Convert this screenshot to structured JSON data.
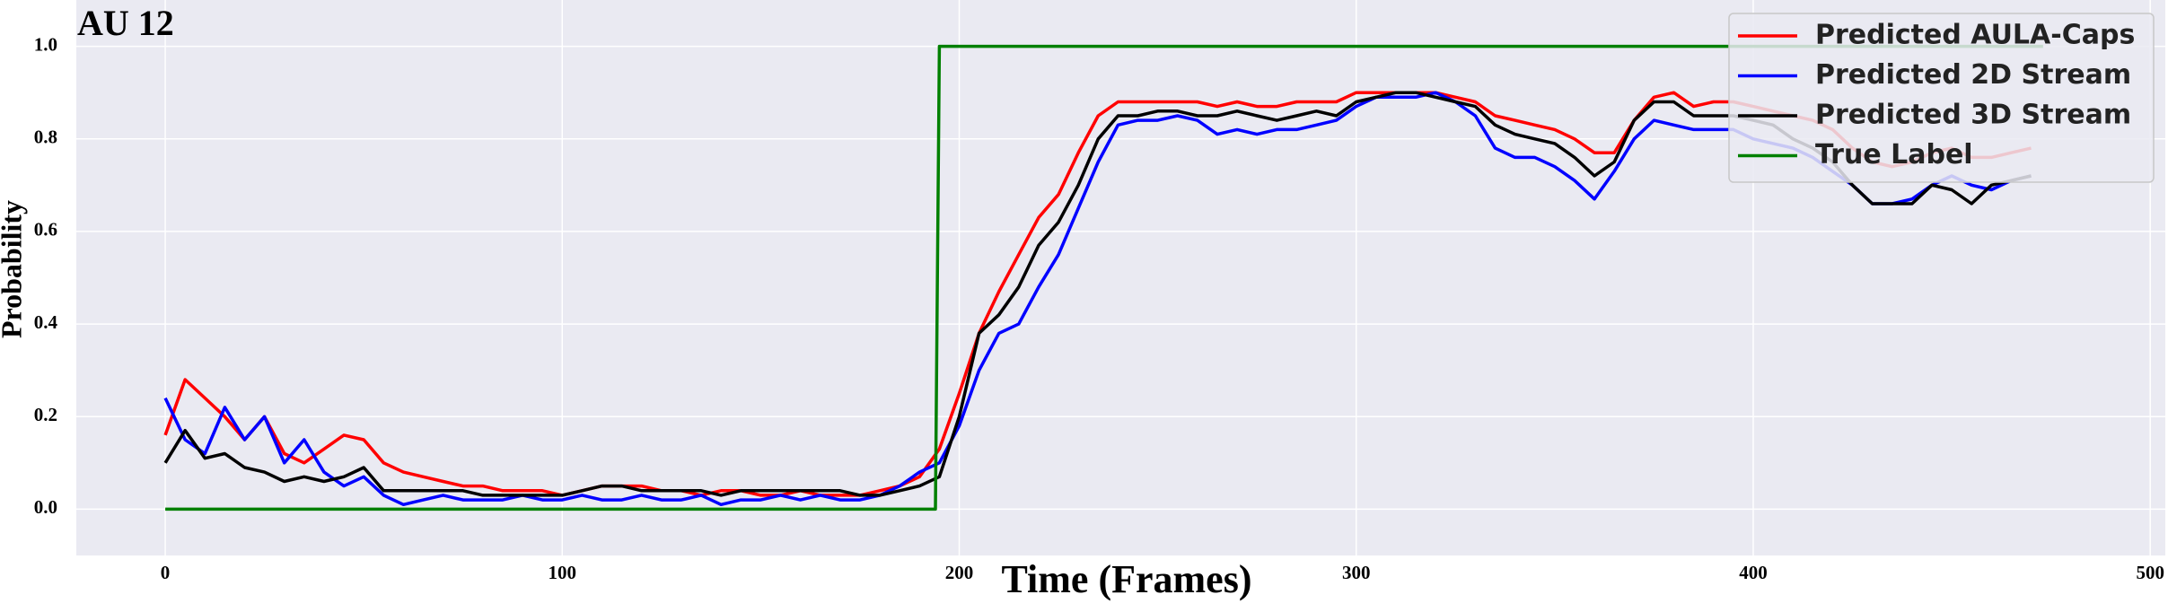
{
  "chart_data": {
    "type": "line",
    "title": "AU 12",
    "xlabel": "Time (Frames)",
    "ylabel": "Probability",
    "x": [
      0,
      5,
      10,
      15,
      20,
      25,
      30,
      35,
      40,
      45,
      50,
      55,
      60,
      65,
      70,
      75,
      80,
      85,
      90,
      95,
      100,
      105,
      110,
      115,
      120,
      125,
      130,
      135,
      140,
      145,
      150,
      155,
      160,
      165,
      170,
      175,
      180,
      185,
      190,
      195,
      200,
      205,
      210,
      215,
      220,
      225,
      230,
      235,
      240,
      245,
      250,
      255,
      260,
      265,
      270,
      275,
      280,
      285,
      290,
      295,
      300,
      305,
      310,
      315,
      320,
      325,
      330,
      335,
      340,
      345,
      350,
      355,
      360,
      365,
      370,
      375,
      380,
      385,
      390,
      395,
      400,
      405,
      410,
      415,
      420,
      425,
      430,
      435,
      440,
      445,
      450,
      455,
      460,
      465,
      470
    ],
    "series": [
      {
        "name": "Predicted AULA-Caps",
        "color": "#ff0000",
        "values": [
          0.16,
          0.28,
          0.24,
          0.2,
          0.15,
          0.2,
          0.12,
          0.1,
          0.13,
          0.16,
          0.15,
          0.1,
          0.08,
          0.07,
          0.06,
          0.05,
          0.05,
          0.04,
          0.04,
          0.04,
          0.03,
          0.04,
          0.05,
          0.05,
          0.05,
          0.04,
          0.04,
          0.03,
          0.04,
          0.04,
          0.03,
          0.03,
          0.04,
          0.03,
          0.03,
          0.03,
          0.04,
          0.05,
          0.07,
          0.13,
          0.25,
          0.38,
          0.47,
          0.55,
          0.63,
          0.68,
          0.77,
          0.85,
          0.88,
          0.88,
          0.88,
          0.88,
          0.88,
          0.87,
          0.88,
          0.87,
          0.87,
          0.88,
          0.88,
          0.88,
          0.9,
          0.9,
          0.9,
          0.9,
          0.9,
          0.89,
          0.88,
          0.85,
          0.84,
          0.83,
          0.82,
          0.8,
          0.77,
          0.77,
          0.84,
          0.89,
          0.9,
          0.87,
          0.88,
          0.88,
          0.87,
          0.86,
          0.85,
          0.84,
          0.82,
          0.78,
          0.75,
          0.74,
          0.75,
          0.77,
          0.78,
          0.76,
          0.76,
          0.77,
          0.78
        ]
      },
      {
        "name": "Predicted 2D Stream",
        "color": "#0000ff",
        "values": [
          0.24,
          0.15,
          0.12,
          0.22,
          0.15,
          0.2,
          0.1,
          0.15,
          0.08,
          0.05,
          0.07,
          0.03,
          0.01,
          0.02,
          0.03,
          0.02,
          0.02,
          0.02,
          0.03,
          0.02,
          0.02,
          0.03,
          0.02,
          0.02,
          0.03,
          0.02,
          0.02,
          0.03,
          0.01,
          0.02,
          0.02,
          0.03,
          0.02,
          0.03,
          0.02,
          0.02,
          0.03,
          0.05,
          0.08,
          0.1,
          0.18,
          0.3,
          0.38,
          0.4,
          0.48,
          0.55,
          0.65,
          0.75,
          0.83,
          0.84,
          0.84,
          0.85,
          0.84,
          0.81,
          0.82,
          0.81,
          0.82,
          0.82,
          0.83,
          0.84,
          0.87,
          0.89,
          0.89,
          0.89,
          0.9,
          0.88,
          0.85,
          0.78,
          0.76,
          0.76,
          0.74,
          0.71,
          0.67,
          0.73,
          0.8,
          0.84,
          0.83,
          0.82,
          0.82,
          0.82,
          0.8,
          0.79,
          0.78,
          0.76,
          0.73,
          0.7,
          0.66,
          0.66,
          0.67,
          0.7,
          0.72,
          0.7,
          0.69,
          0.71,
          0.72
        ]
      },
      {
        "name": "Predicted 3D Stream",
        "color": "#000000",
        "values": [
          0.1,
          0.17,
          0.11,
          0.12,
          0.09,
          0.08,
          0.06,
          0.07,
          0.06,
          0.07,
          0.09,
          0.04,
          0.04,
          0.04,
          0.04,
          0.04,
          0.03,
          0.03,
          0.03,
          0.03,
          0.03,
          0.04,
          0.05,
          0.05,
          0.04,
          0.04,
          0.04,
          0.04,
          0.03,
          0.04,
          0.04,
          0.04,
          0.04,
          0.04,
          0.04,
          0.03,
          0.03,
          0.04,
          0.05,
          0.07,
          0.2,
          0.38,
          0.42,
          0.48,
          0.57,
          0.62,
          0.7,
          0.8,
          0.85,
          0.85,
          0.86,
          0.86,
          0.85,
          0.85,
          0.86,
          0.85,
          0.84,
          0.85,
          0.86,
          0.85,
          0.88,
          0.89,
          0.9,
          0.9,
          0.89,
          0.88,
          0.87,
          0.83,
          0.81,
          0.8,
          0.79,
          0.76,
          0.72,
          0.75,
          0.84,
          0.88,
          0.88,
          0.85,
          0.85,
          0.85,
          0.84,
          0.83,
          0.8,
          0.78,
          0.75,
          0.7,
          0.66,
          0.66,
          0.66,
          0.7,
          0.69,
          0.66,
          0.7,
          0.71,
          0.72
        ]
      },
      {
        "name": "True Label",
        "color": "#008000",
        "x": [
          0,
          194,
          195,
          473
        ],
        "values": [
          0,
          0,
          1,
          1
        ]
      }
    ],
    "xlim": [
      -22.4,
      503.8
    ],
    "ylim": [
      -0.1,
      1.1
    ],
    "xticks": [
      0,
      100,
      200,
      300,
      400,
      500
    ],
    "yticks": [
      {
        "value": 0,
        "label": "0.0"
      },
      0.2,
      0.4,
      0.6,
      0.8,
      {
        "value": 1,
        "label": "1.0"
      }
    ],
    "grid": true,
    "legend": "upper right"
  }
}
